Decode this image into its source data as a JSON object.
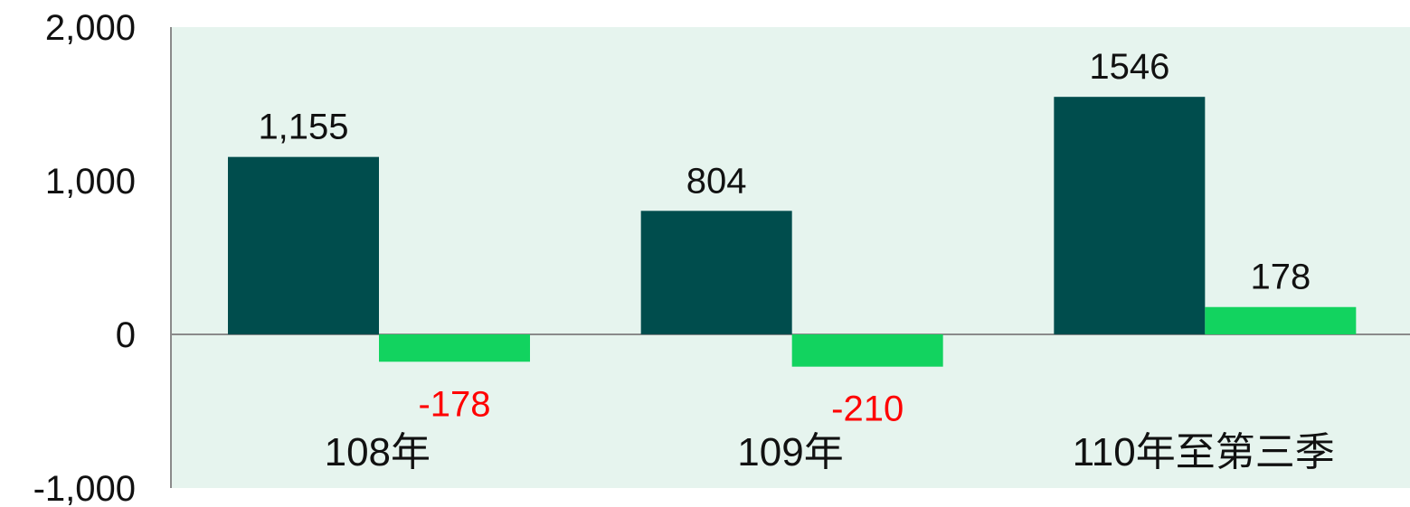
{
  "chart_data": {
    "type": "bar",
    "categories": [
      "108年",
      "109年",
      "110年至第三季"
    ],
    "series": [
      {
        "values": [
          1155,
          804,
          1546
        ],
        "labels": [
          "1,155",
          "804",
          "1546"
        ],
        "color": "#004d4d"
      },
      {
        "values": [
          -178,
          -210,
          178
        ],
        "labels": [
          "-178",
          "-210",
          "178"
        ],
        "color": "#12d35f"
      }
    ],
    "ylim": [
      -1000,
      2000
    ],
    "yticks": [
      -1000,
      0,
      1000,
      2000
    ],
    "ytick_labels": [
      "-1,000",
      "0",
      "1,000",
      "2,000"
    ],
    "title": "",
    "xlabel": "",
    "ylabel": "",
    "plot_background": "#e6f4ee",
    "negative_label_color": "#ff0000",
    "label_color": "#111111"
  }
}
